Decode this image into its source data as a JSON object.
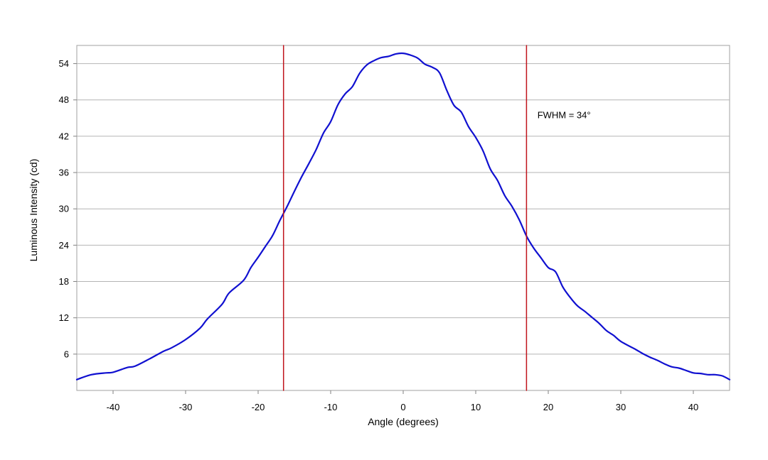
{
  "chart_data": {
    "type": "line",
    "title": "",
    "xlabel": "Angle (degrees)",
    "ylabel": "Luminous Intensity (cd)",
    "xlim": [
      -45,
      45
    ],
    "ylim": [
      0,
      57
    ],
    "x_ticks": [
      -40,
      -30,
      -20,
      -10,
      0,
      10,
      20,
      30,
      40
    ],
    "x_tick_labels": [
      "-40",
      "-30",
      "-20",
      "-10",
      "0",
      "10",
      "20",
      "30",
      "40"
    ],
    "y_ticks": [
      6,
      12,
      18,
      24,
      30,
      36,
      42,
      48,
      54
    ],
    "y_tick_labels": [
      "6",
      "12",
      "18",
      "24",
      "30",
      "36",
      "42",
      "48",
      "54"
    ],
    "grid": "horizontal",
    "legend": "none",
    "series": [
      {
        "color": "#1010d0",
        "x": [
          -45,
          -43,
          -41,
          -40,
          -38,
          -37,
          -35,
          -33,
          -32,
          -30,
          -28,
          -27,
          -25,
          -24,
          -22,
          -21,
          -20,
          -19,
          -18,
          -17,
          -16,
          -15,
          -14,
          -13,
          -12,
          -11,
          -10,
          -9,
          -8,
          -7,
          -6,
          -5,
          -4,
          -3,
          -2,
          -1,
          0,
          1,
          2,
          3,
          4,
          5,
          6,
          7,
          8,
          9,
          10,
          11,
          12,
          13,
          14,
          15,
          16,
          17,
          18,
          19,
          20,
          21,
          22,
          23,
          24,
          25,
          26,
          27,
          28,
          29,
          30,
          32,
          33,
          34,
          35,
          36,
          37,
          38,
          39,
          40,
          41,
          42,
          43,
          44,
          45
        ],
        "y": [
          1.8,
          2.6,
          2.9,
          3.0,
          3.8,
          4.0,
          5.2,
          6.5,
          7.0,
          8.4,
          10.3,
          11.8,
          14.2,
          16.1,
          18.2,
          20.3,
          22.0,
          23.8,
          25.6,
          28.1,
          30.4,
          32.9,
          35.3,
          37.5,
          39.8,
          42.5,
          44.4,
          47.2,
          49.0,
          50.2,
          52.4,
          53.8,
          54.5,
          55.0,
          55.2,
          55.6,
          55.7,
          55.4,
          54.9,
          53.9,
          53.4,
          52.5,
          49.6,
          47.1,
          46.0,
          43.6,
          41.8,
          39.6,
          36.6,
          34.7,
          32.2,
          30.4,
          28.2,
          25.5,
          23.5,
          21.9,
          20.3,
          19.6,
          17.1,
          15.4,
          14.0,
          13.1,
          12.1,
          11.1,
          9.9,
          9.1,
          8.1,
          6.8,
          6.1,
          5.5,
          5.0,
          4.4,
          3.9,
          3.7,
          3.3,
          2.9,
          2.8,
          2.6,
          2.6,
          2.4,
          1.8
        ]
      },
      {
        "color": "#c0141c",
        "x": [
          -16.5,
          -16.5
        ],
        "y": [
          0,
          57
        ]
      },
      {
        "color": "#c0141c",
        "x": [
          17.0,
          17.0
        ],
        "y": [
          0,
          57
        ]
      }
    ],
    "annotations": [
      {
        "text": "FWHM = 34°",
        "x": 18.5,
        "y": 45
      }
    ]
  }
}
